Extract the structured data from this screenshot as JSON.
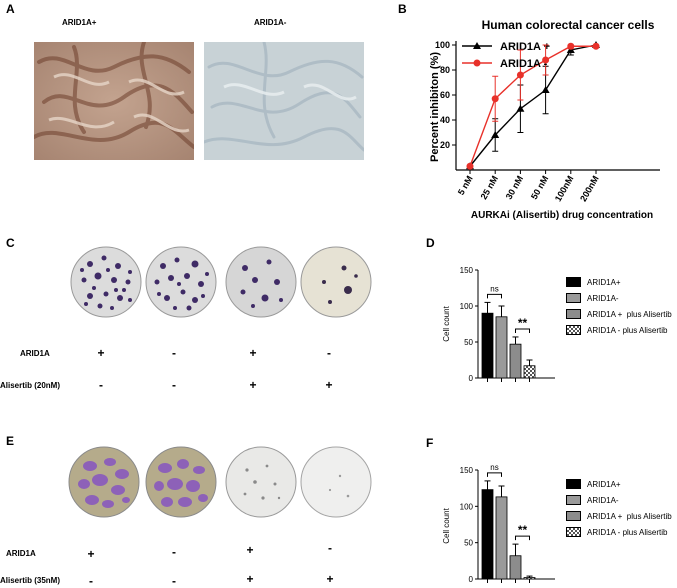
{
  "panels": {
    "a": {
      "label": "A",
      "left_title": "ARID1A+",
      "right_title": "ARID1A-"
    },
    "b": {
      "label": "B",
      "chart_data": {
        "type": "line",
        "title": "Human colorectal cancer cells",
        "xlabel": "AURKAi (Alisertib) drug concentration",
        "ylabel": "Percent inhibiton (%)",
        "categories": [
          "5 nM",
          "25 nM",
          "30 nM",
          "50 nM",
          "100nM",
          "200nM"
        ],
        "ylim": [
          0,
          100
        ],
        "yticks": [
          "20",
          "40",
          "60",
          "80",
          "100"
        ],
        "legend_position": "top-left",
        "series": [
          {
            "name": "ARID1A +",
            "color": "#000000",
            "marker": "triangle",
            "values": [
              3,
              28,
              49,
              64,
              96,
              100
            ],
            "err": [
              1,
              13,
              19,
              19,
              4,
              1
            ]
          },
          {
            "name": "ARID1A -",
            "color": "#e8312a",
            "marker": "circle",
            "values": [
              3,
              57,
              76,
              88,
              99,
              99
            ],
            "err": [
              1,
              18,
              20,
              12,
              2,
              1
            ]
          }
        ]
      }
    },
    "c": {
      "label": "C",
      "row1_label": "ARID1A",
      "row2_label": "Alisertib (20nM)",
      "row1_signs": [
        "+",
        "-",
        "+",
        "-"
      ],
      "row2_signs": [
        "-",
        "-",
        "+",
        "+"
      ]
    },
    "d": {
      "label": "D",
      "chart_data": {
        "type": "bar",
        "ylabel": "Cell count",
        "categories": [
          "ARID1A+",
          "ARID1A-",
          "ARID1A +  plus Alisertib",
          "ARID1A - plus Alisertib"
        ],
        "values": [
          90,
          85,
          47,
          17
        ],
        "err": [
          15,
          15,
          10,
          8
        ],
        "ylim": [
          0,
          150
        ],
        "yticks": [
          "0",
          "50",
          "100",
          "150"
        ],
        "legend_position": "right",
        "annotations": [
          "ns",
          "**"
        ]
      }
    },
    "e": {
      "label": "E",
      "row1_label": "ARID1A",
      "row2_label": "Alisertib (35nM)",
      "row1_signs": [
        "+",
        "-",
        "+",
        "-"
      ],
      "row2_signs": [
        "-",
        "-",
        "+",
        "+"
      ]
    },
    "f": {
      "label": "F",
      "chart_data": {
        "type": "bar",
        "ylabel": "Cell count",
        "categories": [
          "ARID1A+",
          "ARID1A-",
          "ARID1A +  plus Alisertib",
          "ARID1A - plus Alisertib"
        ],
        "values": [
          123,
          113,
          32,
          2
        ],
        "err": [
          12,
          15,
          16,
          2
        ],
        "ylim": [
          0,
          150
        ],
        "yticks": [
          "0",
          "50",
          "100",
          "150"
        ],
        "legend_position": "right",
        "annotations": [
          "ns",
          "**"
        ]
      }
    }
  }
}
